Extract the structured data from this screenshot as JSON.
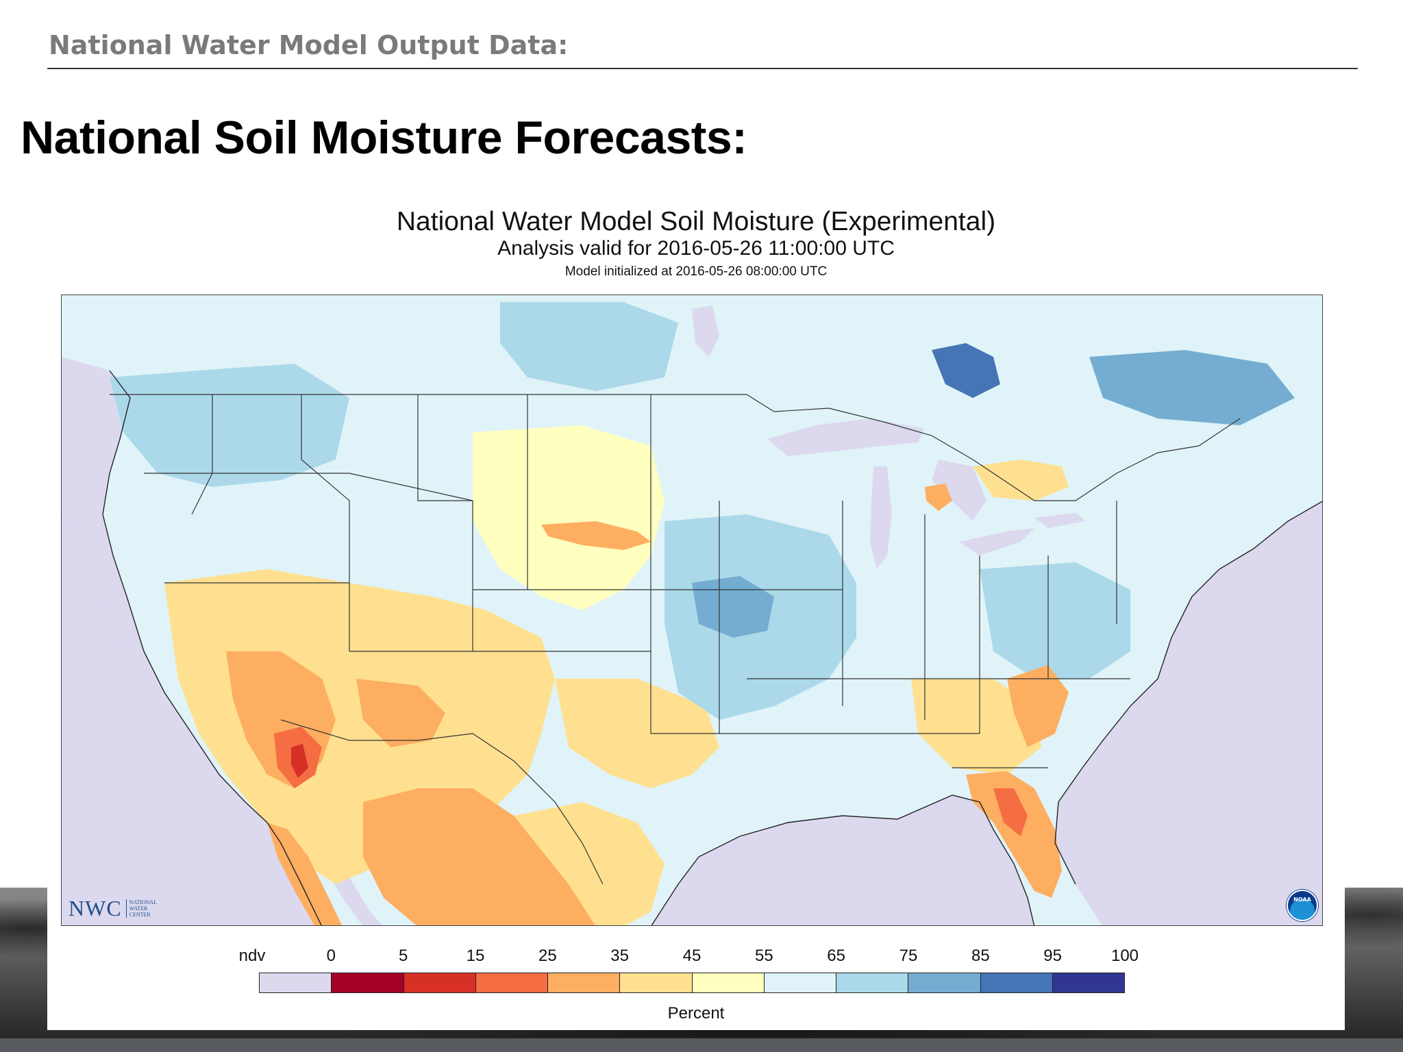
{
  "header": {
    "label": "National Water Model Output Data:"
  },
  "slide": {
    "title": "National Soil Moisture Forecasts:"
  },
  "figure": {
    "title": "National Water Model Soil Moisture (Experimental)",
    "subtitle": "Analysis valid for 2016-05-26 11:00:00 UTC",
    "initialized": "Model initialized at 2016-05-26 08:00:00 UTC",
    "logos": {
      "nwc_main": "NWC",
      "nwc_small": [
        "NATIONAL",
        "WATER",
        "CENTER"
      ],
      "noaa": "NOAA"
    }
  },
  "legend": {
    "unit_label": "Percent",
    "ticks": [
      "ndv",
      "0",
      "5",
      "15",
      "25",
      "35",
      "45",
      "55",
      "65",
      "75",
      "85",
      "95",
      "100"
    ],
    "colors": [
      "#dcd9ef",
      "#a50026",
      "#d73027",
      "#f46d43",
      "#fdae61",
      "#fee090",
      "#ffffbf",
      "#e0f3f8",
      "#abd9e9",
      "#74add1",
      "#4575b4",
      "#313695"
    ],
    "bins": [
      "ndv",
      "0-5",
      "5-15",
      "15-25",
      "25-35",
      "35-45",
      "45-55",
      "55-65",
      "65-75",
      "75-85",
      "85-95",
      "95-100"
    ]
  },
  "map": {
    "region": "Continental United States with portions of Canada and Mexico",
    "palette": {
      "ndv": "#dcd9ef",
      "very_dry": "#d73027",
      "dry": "#f46d43",
      "moderate_dry": "#fdae61",
      "light": "#fee090",
      "pale": "#ffffbf",
      "wet_light": "#e0f3f8",
      "wet": "#abd9e9",
      "wetter": "#74add1",
      "wettest": "#4575b4",
      "border": "#333333"
    }
  }
}
